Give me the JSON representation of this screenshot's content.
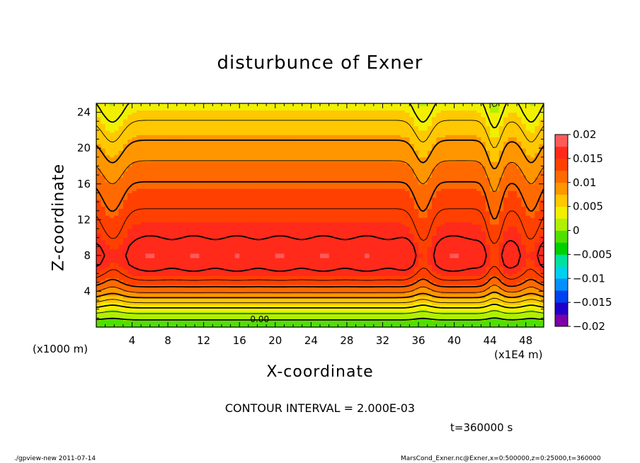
{
  "chart_data": {
    "type": "heatmap",
    "title": "disturbunce of Exner",
    "xlabel": "X-coordinate",
    "ylabel": "Z-coordinate",
    "x_unit_label": "(x1E4 m)",
    "y_unit_label": "(x1000 m)",
    "xlim": [
      0,
      50
    ],
    "ylim": [
      0,
      25
    ],
    "xticks": [
      4,
      8,
      12,
      16,
      20,
      24,
      28,
      32,
      36,
      40,
      44,
      48
    ],
    "yticks": [
      4,
      8,
      12,
      16,
      20,
      24
    ],
    "colorbar": {
      "min": -0.02,
      "max": 0.02,
      "interval": 0.0025,
      "tick_labels": [
        "0.02",
        "0.015",
        "0.01",
        "0.005",
        "0",
        "-0.005",
        "-0.01",
        "-0.015",
        "-0.02"
      ],
      "colors": [
        "#7b00a8",
        "#2000c8",
        "#0040f0",
        "#0090ff",
        "#00d0f0",
        "#00e0a0",
        "#00d000",
        "#50e000",
        "#b0f000",
        "#f0f000",
        "#ffc800",
        "#ff9600",
        "#ff6a00",
        "#ff4000",
        "#ff2a1a",
        "#ff5a5a"
      ]
    },
    "contour_interval_label": "CONTOUR INTERVAL = 2.000E-03",
    "contour_label": "0.00",
    "field_profile": [
      {
        "z": 0,
        "value": -0.002
      },
      {
        "z": 1,
        "value": 0.0005
      },
      {
        "z": 2,
        "value": 0.0035
      },
      {
        "z": 3,
        "value": 0.007
      },
      {
        "z": 4,
        "value": 0.0105
      },
      {
        "z": 5,
        "value": 0.0135
      },
      {
        "z": 6,
        "value": 0.0155
      },
      {
        "z": 7,
        "value": 0.0168
      },
      {
        "z": 8,
        "value": 0.0172
      },
      {
        "z": 9,
        "value": 0.0168
      },
      {
        "z": 10,
        "value": 0.016
      },
      {
        "z": 12,
        "value": 0.0148
      },
      {
        "z": 14,
        "value": 0.0135
      },
      {
        "z": 16,
        "value": 0.0122
      },
      {
        "z": 18,
        "value": 0.0105
      },
      {
        "z": 20,
        "value": 0.0088
      },
      {
        "z": 22,
        "value": 0.007
      },
      {
        "z": 24,
        "value": 0.0052
      },
      {
        "z": 25,
        "value": 0.0045
      }
    ],
    "time_label": "t=360000 s"
  },
  "footer": {
    "left": "./gpview-new   2011-07-14",
    "right": "MarsCond_Exner.nc@Exner,x=0:500000,z=0:25000,t=360000"
  }
}
